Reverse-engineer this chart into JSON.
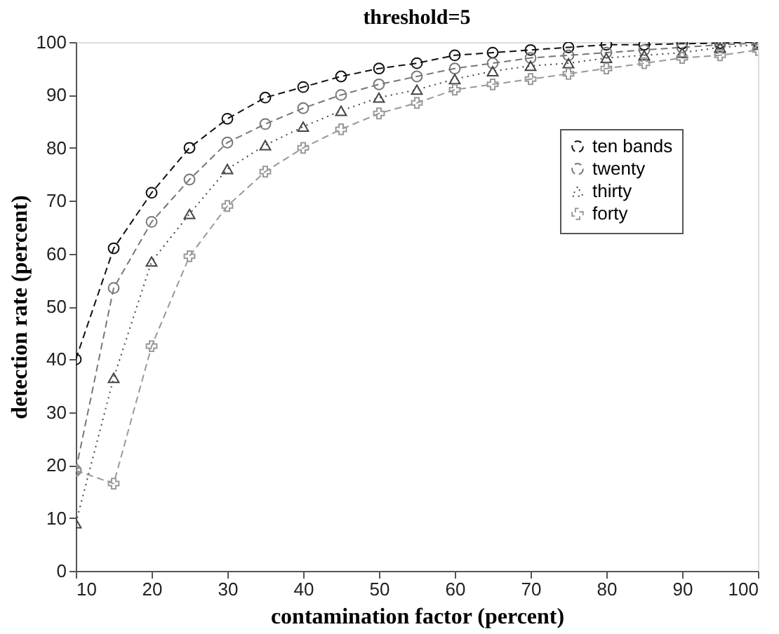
{
  "chart_data": {
    "type": "line",
    "title": "threshold=5",
    "xlabel": "contamination factor (percent)",
    "ylabel": "detection rate (percent)",
    "x": [
      10,
      15,
      20,
      25,
      30,
      35,
      40,
      45,
      50,
      55,
      60,
      65,
      70,
      75,
      80,
      85,
      90,
      95,
      100
    ],
    "series": [
      {
        "name": "ten bands",
        "color": "#111111",
        "marker": "circle",
        "line_style": "dashed",
        "values": [
          40,
          61,
          71.5,
          80,
          85.5,
          89.5,
          91.5,
          93.5,
          95,
          96,
          97.5,
          98,
          98.5,
          99,
          99.5,
          99.5,
          99.7,
          99.8,
          100
        ]
      },
      {
        "name": "twenty",
        "color": "#777777",
        "marker": "circle",
        "line_style": "dashed",
        "values": [
          19,
          53.5,
          66,
          74,
          81,
          84.5,
          87.5,
          90,
          92,
          93.5,
          95,
          96,
          97,
          97.5,
          98,
          98.5,
          99,
          99.5,
          99.8
        ]
      },
      {
        "name": "thirty",
        "color": "#444444",
        "marker": "triangle",
        "line_style": "dotted",
        "values": [
          9,
          36.5,
          58.5,
          67.5,
          76,
          80.5,
          84,
          87,
          89.5,
          91,
          93,
          94.5,
          95.5,
          96,
          97,
          97.5,
          98,
          99,
          99.5
        ]
      },
      {
        "name": "forty",
        "color": "#999999",
        "marker": "cross",
        "line_style": "dashed",
        "values": [
          19,
          16.5,
          42.5,
          59.5,
          69,
          75.5,
          80,
          83.5,
          86.5,
          88.5,
          91,
          92,
          93,
          94,
          95,
          96,
          97,
          97.5,
          98.5
        ]
      }
    ],
    "xlim": [
      10,
      100
    ],
    "ylim": [
      0,
      100
    ],
    "xticks": [
      10,
      20,
      30,
      40,
      50,
      60,
      70,
      80,
      90,
      100
    ],
    "yticks": [
      0,
      10,
      20,
      30,
      40,
      50,
      60,
      70,
      80,
      90,
      100
    ],
    "grid": false,
    "legend": "top right"
  }
}
